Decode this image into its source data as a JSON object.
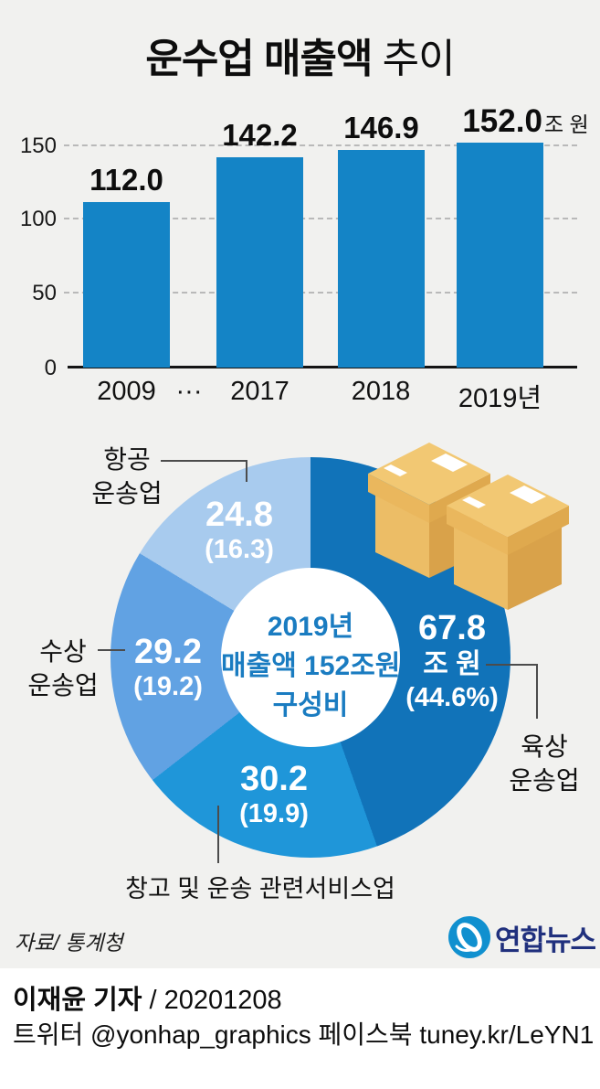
{
  "title": {
    "main": "운수업 매출액",
    "sub": " 추이"
  },
  "chart_data": [
    {
      "type": "bar",
      "title": "운수업 매출액 추이",
      "categories": [
        "2009",
        "2017",
        "2018",
        "2019년"
      ],
      "values": [
        112.0,
        142.2,
        146.9,
        152.0
      ],
      "value_labels": [
        "112.0",
        "142.2",
        "146.9",
        "152.0"
      ],
      "last_value_suffix": "조 원",
      "gap_label": "···",
      "yticks": [
        "150",
        "100",
        "50",
        "0"
      ],
      "ylim": [
        0,
        155
      ],
      "grid": "dashed horizontal",
      "bar_color": "#1484c6"
    },
    {
      "type": "pie",
      "subtype": "donut",
      "center_lines": [
        "2019년",
        "매출액 152조원",
        "구성비"
      ],
      "segments": [
        {
          "name": "육상 운송업",
          "name_line1": "육상",
          "name_line2": "운송업",
          "value": 67.8,
          "pct": 44.6,
          "value_label": "67.8",
          "unit_label": "조 원",
          "pct_label": "(44.6%)",
          "color": "#1173b9"
        },
        {
          "name": "창고 및 운송 관련서비스업",
          "value": 30.2,
          "pct": 19.9,
          "value_label": "30.2",
          "pct_label": "(19.9)",
          "color": "#1f96d9"
        },
        {
          "name": "수상 운송업",
          "name_line1": "수상",
          "name_line2": "운송업",
          "value": 29.2,
          "pct": 19.2,
          "value_label": "29.2",
          "pct_label": "(19.2)",
          "color": "#61a2e3"
        },
        {
          "name": "항공 운송업",
          "name_line1": "항공",
          "name_line2": "운송업",
          "value": 24.8,
          "pct": 16.3,
          "value_label": "24.8",
          "pct_label": "(16.3)",
          "color": "#a8cbee"
        }
      ]
    }
  ],
  "source": "자료/ 통계청",
  "logo": {
    "text": "연합뉴스"
  },
  "credit": {
    "reporter": "이재윤 기자",
    "date": " / 20201208",
    "social": "트위터 @yonhap_graphics  페이스북 tuney.kr/LeYN1"
  },
  "colors": {
    "background": "#f1f1ef",
    "bar": "#1484c6",
    "center_text": "#1a7cc1",
    "logo_navy": "#20307d",
    "logo_blue": "#1090cf",
    "leader_line": "#4c4c4c",
    "box_tan": "#f2c873"
  }
}
